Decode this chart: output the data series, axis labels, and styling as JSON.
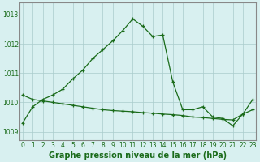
{
  "line1_x": [
    0,
    1,
    2,
    3,
    4,
    5,
    6,
    7,
    8,
    9,
    10,
    11,
    12,
    13,
    14,
    15,
    16,
    17,
    18,
    19,
    20,
    21,
    22,
    23
  ],
  "line1_y": [
    1009.3,
    1009.85,
    1010.1,
    1010.25,
    1010.45,
    1010.8,
    1011.1,
    1011.5,
    1011.8,
    1012.1,
    1012.45,
    1012.85,
    1012.6,
    1012.25,
    1012.3,
    1010.7,
    1009.75,
    1009.75,
    1009.85,
    1009.5,
    1009.45,
    1009.2,
    1009.6,
    1010.1
  ],
  "line2_x": [
    0,
    1,
    2,
    3,
    4,
    5,
    6,
    7,
    8,
    9,
    10,
    11,
    12,
    13,
    14,
    15,
    16,
    17,
    18,
    19,
    20,
    21,
    22,
    23
  ],
  "line2_y": [
    1010.25,
    1010.1,
    1010.05,
    1010.0,
    1009.95,
    1009.9,
    1009.85,
    1009.8,
    1009.75,
    1009.72,
    1009.7,
    1009.68,
    1009.65,
    1009.63,
    1009.6,
    1009.58,
    1009.55,
    1009.5,
    1009.48,
    1009.45,
    1009.42,
    1009.4,
    1009.6,
    1009.75
  ],
  "line_color": "#1a6b1a",
  "bg_color": "#d8f0f0",
  "grid_color": "#aacccc",
  "spine_color": "#888888",
  "xlabel": "Graphe pression niveau de la mer (hPa)",
  "yticks": [
    1009,
    1010,
    1011,
    1012,
    1013
  ],
  "xtick_labels": [
    "0",
    "1",
    "2",
    "3",
    "4",
    "5",
    "6",
    "7",
    "8",
    "9",
    "10",
    "11",
    "12",
    "13",
    "14",
    "15",
    "16",
    "17",
    "18",
    "19",
    "20",
    "21",
    "22",
    "23"
  ],
  "xticks": [
    0,
    1,
    2,
    3,
    4,
    5,
    6,
    7,
    8,
    9,
    10,
    11,
    12,
    13,
    14,
    15,
    16,
    17,
    18,
    19,
    20,
    21,
    22,
    23
  ],
  "ylim": [
    1008.7,
    1013.4
  ],
  "xlim": [
    -0.3,
    23.3
  ],
  "tick_fontsize": 5.5,
  "xlabel_fontsize": 7.0
}
